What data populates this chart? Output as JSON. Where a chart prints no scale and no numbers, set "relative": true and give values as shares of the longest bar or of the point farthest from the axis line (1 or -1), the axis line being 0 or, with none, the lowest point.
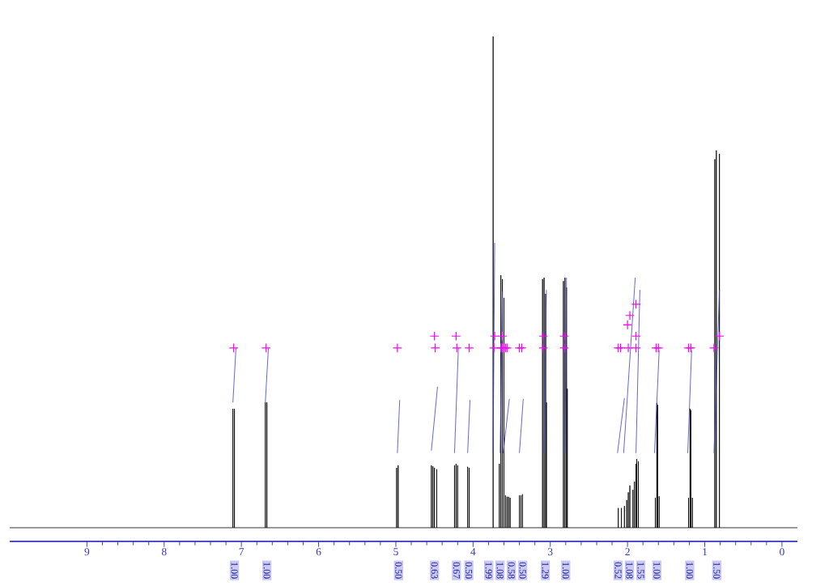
{
  "chart_data": {
    "type": "line",
    "relative": true,
    "xlim": [
      10.0,
      -0.2
    ],
    "xticks": [
      0,
      1,
      2,
      3,
      4,
      5,
      6,
      7,
      8,
      9
    ],
    "series": [
      {
        "color": "#000000",
        "x": [
          10.0,
          7.11,
          7.11,
          7.11,
          7.09,
          7.09,
          7.09,
          6.69,
          6.69,
          6.69,
          6.67,
          6.67,
          6.67,
          4.99,
          4.99,
          4.99,
          4.97,
          4.97,
          4.97,
          4.54,
          4.54,
          4.54,
          4.52,
          4.52,
          4.52,
          4.5,
          4.5,
          4.5,
          4.47,
          4.47,
          4.47,
          4.24,
          4.24,
          4.24,
          4.22,
          4.22,
          4.22,
          4.2,
          4.2,
          4.2,
          4.07,
          4.07,
          4.07,
          4.05,
          4.05,
          4.05,
          3.74,
          3.74,
          3.74,
          3.66,
          3.66,
          3.66,
          3.64,
          3.64,
          3.64,
          3.62,
          3.62,
          3.62,
          3.6,
          3.6,
          3.6,
          3.58,
          3.58,
          3.58,
          3.56,
          3.56,
          3.56,
          3.54,
          3.54,
          3.54,
          3.52,
          3.52,
          3.52,
          3.4,
          3.4,
          3.4,
          3.38,
          3.38,
          3.38,
          3.36,
          3.36,
          3.36,
          3.1,
          3.1,
          3.1,
          3.08,
          3.08,
          3.08,
          3.06,
          3.06,
          3.06,
          3.05,
          3.05,
          3.05,
          2.83,
          2.83,
          2.83,
          2.81,
          2.81,
          2.81,
          2.79,
          2.79,
          2.79,
          2.78,
          2.78,
          2.78,
          2.12,
          2.12,
          2.12,
          2.08,
          2.08,
          2.08,
          2.04,
          2.04,
          2.04,
          2.01,
          2.01,
          2.01,
          1.99,
          1.99,
          1.99,
          1.97,
          1.97,
          1.97,
          1.93,
          1.93,
          1.93,
          1.91,
          1.91,
          1.91,
          1.89,
          1.89,
          1.89,
          1.88,
          1.88,
          1.88,
          1.86,
          1.86,
          1.86,
          1.64,
          1.64,
          1.64,
          1.62,
          1.62,
          1.62,
          1.61,
          1.61,
          1.61,
          1.59,
          1.59,
          1.59,
          1.21,
          1.21,
          1.21,
          1.19,
          1.19,
          1.19,
          1.18,
          1.18,
          1.18,
          1.16,
          1.16,
          1.16,
          0.87,
          0.87,
          0.87,
          0.85,
          0.85,
          0.85,
          0.81,
          0.81,
          0.81,
          -0.2
        ],
        "values": [
          0,
          0,
          0.242,
          0,
          0,
          0.242,
          0,
          0,
          0.255,
          0,
          0,
          0.255,
          0,
          0,
          0.122,
          0,
          0,
          0.127,
          0,
          0,
          0.127,
          0,
          0,
          0.125,
          0,
          0,
          0.122,
          0,
          0,
          0.119,
          0,
          0,
          0.127,
          0,
          0,
          0.13,
          0,
          0,
          0.127,
          0,
          0,
          0.124,
          0,
          0,
          0.122,
          0,
          0,
          1.0,
          0,
          0,
          0.13,
          0,
          0,
          0.514,
          0,
          0,
          0.506,
          0,
          0,
          0.468,
          0,
          0,
          0.066,
          0,
          0,
          0.063,
          0,
          0,
          0.063,
          0,
          0,
          0.061,
          0,
          0,
          0.066,
          0,
          0,
          0.066,
          0,
          0,
          0.068,
          0,
          0,
          0.506,
          0,
          0,
          0.509,
          0,
          0,
          0.476,
          0,
          0,
          0.255,
          0,
          0,
          0.502,
          0,
          0,
          0.509,
          0,
          0,
          0.489,
          0,
          0,
          0.283,
          0,
          0,
          0.04,
          0,
          0,
          0.04,
          0,
          0,
          0.044,
          0,
          0,
          0.056,
          0,
          0,
          0.072,
          0,
          0,
          0.086,
          0,
          0,
          0.077,
          0,
          0,
          0.094,
          0,
          0,
          0.13,
          0,
          0,
          0.14,
          0,
          0,
          0.135,
          0,
          0,
          0.061,
          0,
          0,
          0.254,
          0,
          0,
          0.25,
          0,
          0,
          0.064,
          0,
          0,
          0.061,
          0,
          0,
          0.242,
          0,
          0,
          0.239,
          0,
          0,
          0.061,
          0,
          0,
          0.75,
          0,
          0,
          0.768,
          0,
          0,
          0.761,
          0,
          0
        ]
      },
      {
        "color": "#4040d0",
        "x": [
          7.11,
          7.07,
          null,
          6.69,
          6.65,
          null,
          4.98,
          4.95,
          null,
          4.54,
          4.46,
          null,
          4.24,
          4.19,
          null,
          4.07,
          4.04,
          null,
          3.74,
          3.72,
          null,
          3.65,
          3.62,
          null,
          3.61,
          3.53,
          null,
          3.4,
          3.35,
          null,
          3.08,
          3.05,
          null,
          2.81,
          2.79,
          null,
          2.13,
          2.04,
          null,
          2.05,
          1.9,
          null,
          1.89,
          1.84,
          null,
          1.65,
          1.59,
          null,
          1.22,
          1.17,
          null,
          0.88,
          0.81
        ],
        "values": [
          0.255,
          0.366,
          null,
          0.255,
          0.366,
          null,
          0.152,
          0.26,
          null,
          0.157,
          0.287,
          null,
          0.152,
          0.366,
          null,
          0.152,
          0.26,
          null,
          0.152,
          0.58,
          null,
          0.152,
          0.481,
          null,
          0.152,
          0.262,
          null,
          0.152,
          0.262,
          null,
          0.152,
          0.484,
          null,
          0.152,
          0.509,
          null,
          0.152,
          0.264,
          null,
          0.152,
          0.509,
          null,
          0.152,
          0.484,
          null,
          0.152,
          0.361,
          null,
          0.152,
          0.361,
          null,
          0.152,
          0.484
        ]
      },
      {
        "type": "scatter",
        "color": "#ff00ff",
        "marker": "cross",
        "x": [
          7.1,
          6.68,
          4.98,
          4.49,
          4.21,
          4.05,
          3.73,
          3.64,
          3.62,
          3.6,
          3.58,
          3.56,
          3.4,
          3.37,
          3.09,
          2.82,
          2.12,
          2.09,
          1.99,
          1.89,
          1.63,
          1.6,
          1.21,
          1.18,
          0.88,
          4.5,
          4.22,
          3.72,
          3.62,
          3.09,
          2.82,
          1.89,
          0.81,
          2.0,
          1.97,
          1.89
        ],
        "values": [
          0.366,
          0.366,
          0.366,
          0.366,
          0.366,
          0.366,
          0.366,
          0.366,
          0.366,
          0.366,
          0.366,
          0.366,
          0.366,
          0.366,
          0.366,
          0.366,
          0.366,
          0.366,
          0.366,
          0.366,
          0.366,
          0.366,
          0.366,
          0.366,
          0.366,
          0.39,
          0.39,
          0.39,
          0.39,
          0.39,
          0.39,
          0.39,
          0.39,
          0.413,
          0.432,
          0.455
        ]
      }
    ],
    "annotations": [
      "1.00",
      "1.00",
      "0.50",
      "0.63",
      "0.67",
      "0.50",
      "1.99",
      "1.08",
      "0.58",
      "0.50",
      "1.29",
      "1.00",
      "0.52",
      "1.08",
      "1.55",
      "1.00",
      "1.00",
      "1.50"
    ]
  }
}
